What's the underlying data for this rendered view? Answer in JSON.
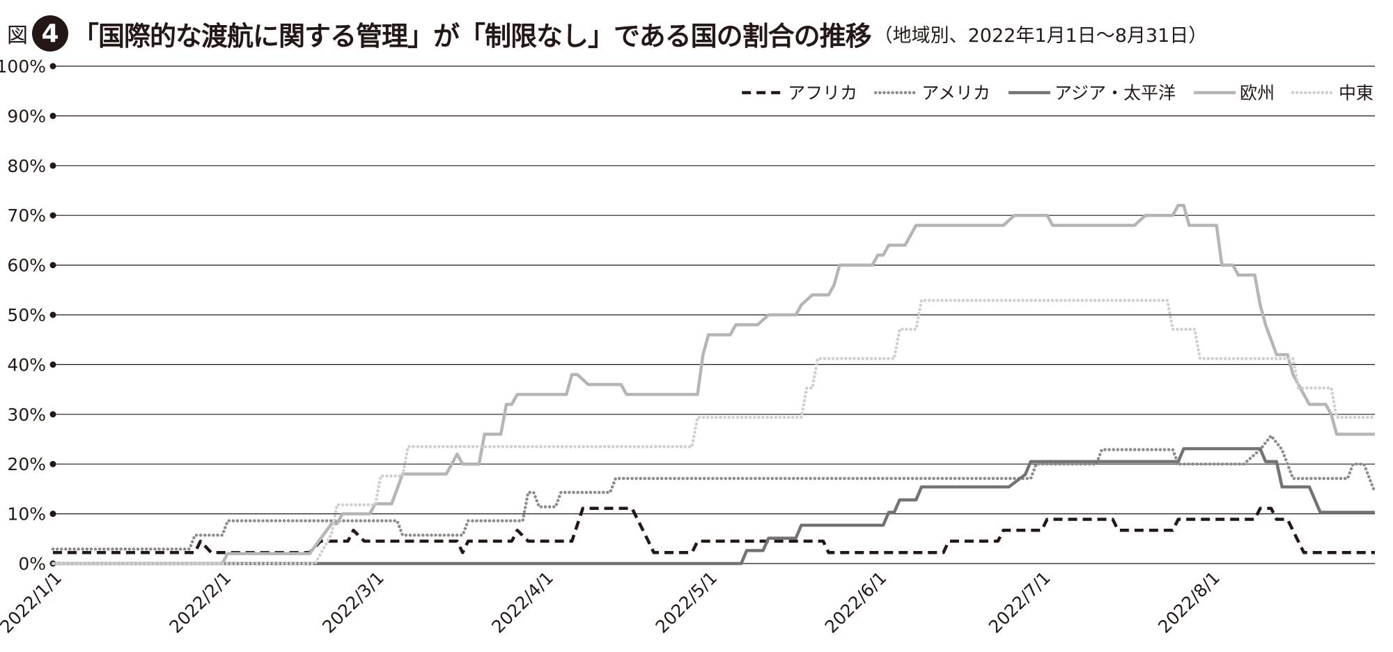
{
  "figure": {
    "prefix": "図",
    "number": "4",
    "title": "「国際的な渡航に関する管理」が「制限なし」である国の割合の推移",
    "subtitle": "（地域別、2022年1月1日〜8月31日）"
  },
  "chart_data": {
    "type": "line",
    "title": "「国際的な渡航に関する管理」が「制限なし」である国の割合の推移",
    "subtitle": "（地域別、2022年1月1日〜8月31日）",
    "xlabel": "",
    "ylabel": "",
    "xlim": [
      "2022-01-01",
      "2022-08-31"
    ],
    "ylim": [
      0,
      100
    ],
    "x_ticks": [
      "2022-01-01",
      "2022-02-01",
      "2022-03-01",
      "2022-04-01",
      "2022-05-01",
      "2022-06-01",
      "2022-07-01",
      "2022-08-01"
    ],
    "x_tick_labels": [
      "2022/1/1",
      "2022/2/1",
      "2022/3/1",
      "2022/4/1",
      "2022/5/1",
      "2022/6/1",
      "2022/7/1",
      "2022/8/1"
    ],
    "y_ticks": [
      0,
      10,
      20,
      30,
      40,
      50,
      60,
      70,
      80,
      90,
      100
    ],
    "y_tick_labels": [
      "0%",
      "10%",
      "20%",
      "30%",
      "40%",
      "50%",
      "60%",
      "70%",
      "80%",
      "90%",
      "100%"
    ],
    "grid": true,
    "legend_position": "top-right",
    "series": [
      {
        "name": "アフリカ",
        "color": "#231815",
        "style": "dashed",
        "points": [
          [
            "2022-01-01",
            2.2
          ],
          [
            "2022-01-27",
            2.2
          ],
          [
            "2022-01-28",
            4.5
          ],
          [
            "2022-01-30",
            2.2
          ],
          [
            "2022-02-17",
            2.2
          ],
          [
            "2022-02-19",
            4.5
          ],
          [
            "2022-02-24",
            4.5
          ],
          [
            "2022-02-25",
            6.7
          ],
          [
            "2022-02-27",
            4.5
          ],
          [
            "2022-03-16",
            4.5
          ],
          [
            "2022-03-17",
            2.2
          ],
          [
            "2022-03-18",
            4.5
          ],
          [
            "2022-03-26",
            4.5
          ],
          [
            "2022-03-27",
            6.7
          ],
          [
            "2022-03-29",
            4.5
          ],
          [
            "2022-04-06",
            4.5
          ],
          [
            "2022-04-08",
            11.1
          ],
          [
            "2022-04-17",
            11.1
          ],
          [
            "2022-04-20",
            4.5
          ],
          [
            "2022-04-21",
            2.2
          ],
          [
            "2022-04-28",
            2.2
          ],
          [
            "2022-04-29",
            4.5
          ],
          [
            "2022-05-22",
            4.5
          ],
          [
            "2022-05-23",
            2.2
          ],
          [
            "2022-06-13",
            2.2
          ],
          [
            "2022-06-14",
            4.5
          ],
          [
            "2022-06-23",
            4.5
          ],
          [
            "2022-06-24",
            6.7
          ],
          [
            "2022-07-01",
            6.7
          ],
          [
            "2022-07-02",
            8.9
          ],
          [
            "2022-07-14",
            8.9
          ],
          [
            "2022-07-15",
            6.7
          ],
          [
            "2022-07-25",
            6.7
          ],
          [
            "2022-07-26",
            8.9
          ],
          [
            "2022-08-09",
            8.9
          ],
          [
            "2022-08-10",
            11.1
          ],
          [
            "2022-08-12",
            11.1
          ],
          [
            "2022-08-13",
            8.9
          ],
          [
            "2022-08-15",
            8.9
          ],
          [
            "2022-08-18",
            2.2
          ],
          [
            "2022-08-31",
            2.2
          ]
        ]
      },
      {
        "name": "アメリカ",
        "color": "#8c8c8c",
        "style": "dotted",
        "points": [
          [
            "2022-01-01",
            2.9
          ],
          [
            "2022-01-26",
            2.9
          ],
          [
            "2022-01-27",
            5.7
          ],
          [
            "2022-02-01",
            5.7
          ],
          [
            "2022-02-02",
            8.6
          ],
          [
            "2022-03-05",
            8.6
          ],
          [
            "2022-03-06",
            5.7
          ],
          [
            "2022-03-17",
            5.7
          ],
          [
            "2022-03-18",
            8.6
          ],
          [
            "2022-03-28",
            8.6
          ],
          [
            "2022-03-29",
            14.3
          ],
          [
            "2022-03-30",
            14.3
          ],
          [
            "2022-03-31",
            11.4
          ],
          [
            "2022-04-03",
            11.4
          ],
          [
            "2022-04-04",
            14.3
          ],
          [
            "2022-04-13",
            14.3
          ],
          [
            "2022-04-14",
            17.1
          ],
          [
            "2022-06-29",
            17.1
          ],
          [
            "2022-06-30",
            20.0
          ],
          [
            "2022-07-11",
            20.0
          ],
          [
            "2022-07-12",
            22.9
          ],
          [
            "2022-07-25",
            22.9
          ],
          [
            "2022-07-26",
            20.0
          ],
          [
            "2022-08-07",
            20.0
          ],
          [
            "2022-08-10",
            22.9
          ],
          [
            "2022-08-12",
            25.7
          ],
          [
            "2022-08-14",
            22.9
          ],
          [
            "2022-08-16",
            17.1
          ],
          [
            "2022-08-26",
            17.1
          ],
          [
            "2022-08-27",
            20.0
          ],
          [
            "2022-08-29",
            20.0
          ],
          [
            "2022-08-31",
            14.3
          ]
        ]
      },
      {
        "name": "アジア・太平洋",
        "color": "#737373",
        "style": "solid",
        "points": [
          [
            "2022-01-01",
            0
          ],
          [
            "2022-05-07",
            0
          ],
          [
            "2022-05-08",
            2.6
          ],
          [
            "2022-05-11",
            2.6
          ],
          [
            "2022-05-12",
            5.1
          ],
          [
            "2022-05-17",
            5.1
          ],
          [
            "2022-05-18",
            7.7
          ],
          [
            "2022-06-02",
            7.7
          ],
          [
            "2022-06-03",
            10.3
          ],
          [
            "2022-06-04",
            10.3
          ],
          [
            "2022-06-05",
            12.8
          ],
          [
            "2022-06-08",
            12.8
          ],
          [
            "2022-06-09",
            15.4
          ],
          [
            "2022-06-25",
            15.4
          ],
          [
            "2022-06-28",
            17.9
          ],
          [
            "2022-06-29",
            20.5
          ],
          [
            "2022-07-26",
            20.5
          ],
          [
            "2022-07-27",
            23.1
          ],
          [
            "2022-08-10",
            23.1
          ],
          [
            "2022-08-11",
            20.5
          ],
          [
            "2022-08-13",
            20.5
          ],
          [
            "2022-08-14",
            15.4
          ],
          [
            "2022-08-19",
            15.4
          ],
          [
            "2022-08-21",
            10.3
          ],
          [
            "2022-08-31",
            10.3
          ]
        ]
      },
      {
        "name": "欧州",
        "color": "#b5b5b5",
        "style": "solid",
        "points": [
          [
            "2022-01-01",
            0
          ],
          [
            "2022-02-01",
            0
          ],
          [
            "2022-02-02",
            2.0
          ],
          [
            "2022-02-17",
            2.0
          ],
          [
            "2022-02-21",
            8.0
          ],
          [
            "2022-02-22",
            8.0
          ],
          [
            "2022-02-23",
            10.0
          ],
          [
            "2022-02-28",
            10.0
          ],
          [
            "2022-03-01",
            12.0
          ],
          [
            "2022-03-04",
            12.0
          ],
          [
            "2022-03-06",
            18.0
          ],
          [
            "2022-03-14",
            18.0
          ],
          [
            "2022-03-16",
            22.0
          ],
          [
            "2022-03-17",
            20.0
          ],
          [
            "2022-03-20",
            20.0
          ],
          [
            "2022-03-21",
            26.0
          ],
          [
            "2022-03-24",
            26.0
          ],
          [
            "2022-03-25",
            32.0
          ],
          [
            "2022-03-26",
            32.0
          ],
          [
            "2022-03-27",
            34.0
          ],
          [
            "2022-04-05",
            34.0
          ],
          [
            "2022-04-06",
            38.0
          ],
          [
            "2022-04-07",
            38.0
          ],
          [
            "2022-04-09",
            36.0
          ],
          [
            "2022-04-15",
            36.0
          ],
          [
            "2022-04-16",
            34.0
          ],
          [
            "2022-04-29",
            34.0
          ],
          [
            "2022-04-30",
            42.0
          ],
          [
            "2022-05-01",
            46.0
          ],
          [
            "2022-05-05",
            46.0
          ],
          [
            "2022-05-06",
            48.0
          ],
          [
            "2022-05-10",
            48.0
          ],
          [
            "2022-05-12",
            50.0
          ],
          [
            "2022-05-17",
            50.0
          ],
          [
            "2022-05-18",
            52.0
          ],
          [
            "2022-05-20",
            54.0
          ],
          [
            "2022-05-23",
            54.0
          ],
          [
            "2022-05-24",
            56.0
          ],
          [
            "2022-05-25",
            60.0
          ],
          [
            "2022-05-31",
            60.0
          ],
          [
            "2022-06-01",
            62.0
          ],
          [
            "2022-06-02",
            62.0
          ],
          [
            "2022-06-03",
            64.0
          ],
          [
            "2022-06-06",
            64.0
          ],
          [
            "2022-06-08",
            68.0
          ],
          [
            "2022-06-24",
            68.0
          ],
          [
            "2022-06-26",
            70.0
          ],
          [
            "2022-07-02",
            70.0
          ],
          [
            "2022-07-03",
            68.0
          ],
          [
            "2022-07-18",
            68.0
          ],
          [
            "2022-07-20",
            70.0
          ],
          [
            "2022-07-25",
            70.0
          ],
          [
            "2022-07-26",
            72.0
          ],
          [
            "2022-07-27",
            72.0
          ],
          [
            "2022-07-28",
            68.0
          ],
          [
            "2022-08-02",
            68.0
          ],
          [
            "2022-08-03",
            60.0
          ],
          [
            "2022-08-05",
            60.0
          ],
          [
            "2022-08-06",
            58.0
          ],
          [
            "2022-08-09",
            58.0
          ],
          [
            "2022-08-10",
            52.0
          ],
          [
            "2022-08-11",
            48.0
          ],
          [
            "2022-08-13",
            42.0
          ],
          [
            "2022-08-15",
            42.0
          ],
          [
            "2022-08-16",
            38.0
          ],
          [
            "2022-08-18",
            34.0
          ],
          [
            "2022-08-19",
            32.0
          ],
          [
            "2022-08-22",
            32.0
          ],
          [
            "2022-08-23",
            30.0
          ],
          [
            "2022-08-24",
            26.0
          ],
          [
            "2022-08-31",
            26.0
          ]
        ]
      },
      {
        "name": "中東",
        "color": "#cfcfcf",
        "style": "dotted",
        "points": [
          [
            "2022-01-01",
            0
          ],
          [
            "2022-02-18",
            0
          ],
          [
            "2022-02-21",
            5.9
          ],
          [
            "2022-02-22",
            11.8
          ],
          [
            "2022-03-01",
            11.8
          ],
          [
            "2022-03-02",
            17.6
          ],
          [
            "2022-03-06",
            17.6
          ],
          [
            "2022-03-07",
            23.5
          ],
          [
            "2022-04-28",
            23.5
          ],
          [
            "2022-04-29",
            29.4
          ],
          [
            "2022-05-18",
            29.4
          ],
          [
            "2022-05-19",
            35.3
          ],
          [
            "2022-05-20",
            35.3
          ],
          [
            "2022-05-21",
            41.2
          ],
          [
            "2022-06-04",
            41.2
          ],
          [
            "2022-06-05",
            47.1
          ],
          [
            "2022-06-08",
            47.1
          ],
          [
            "2022-06-09",
            52.9
          ],
          [
            "2022-07-24",
            52.9
          ],
          [
            "2022-07-25",
            47.1
          ],
          [
            "2022-07-29",
            47.1
          ],
          [
            "2022-07-30",
            41.2
          ],
          [
            "2022-08-16",
            41.2
          ],
          [
            "2022-08-17",
            35.3
          ],
          [
            "2022-08-23",
            35.3
          ],
          [
            "2022-08-24",
            29.4
          ],
          [
            "2022-08-31",
            29.4
          ]
        ]
      }
    ]
  }
}
